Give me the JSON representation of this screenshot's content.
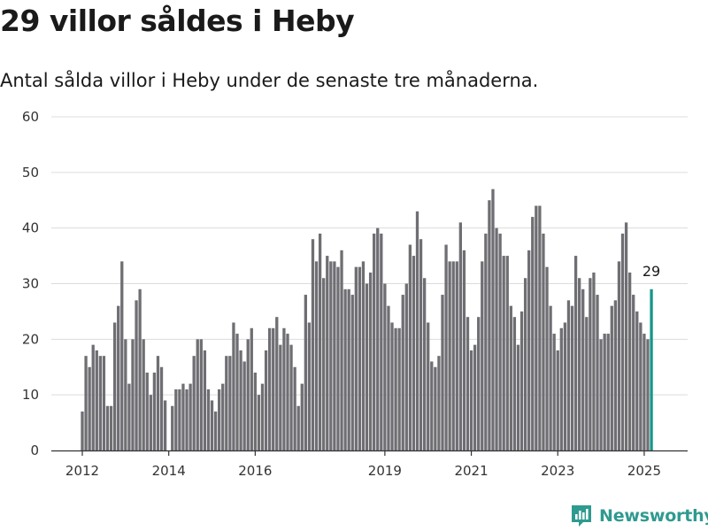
{
  "header": {
    "title": "29 villor såldes i Heby",
    "subtitle": "Antal sålda villor i Heby under de senaste tre månaderna."
  },
  "brand": {
    "name": "Newsworthy",
    "icon": "newsworthy-logo-icon",
    "color": "#2f9a8f"
  },
  "colors": {
    "bar": "#6f6e73",
    "highlight": "#17968a",
    "grid": "#dcdcdc",
    "axis": "#333333"
  },
  "chart_data": {
    "type": "bar",
    "title": "",
    "xlabel": "",
    "ylabel": "",
    "ylim": [
      0,
      60
    ],
    "y_ticks": [
      0,
      10,
      20,
      30,
      40,
      50,
      60
    ],
    "x_ticks": [
      {
        "label": "2012",
        "date": "2012-01"
      },
      {
        "label": "2014",
        "date": "2014-01"
      },
      {
        "label": "2016",
        "date": "2016-01"
      },
      {
        "label": "2019",
        "date": "2019-01"
      },
      {
        "label": "2021",
        "date": "2021-01"
      },
      {
        "label": "2023",
        "date": "2023-01"
      },
      {
        "label": "2025",
        "date": "2025-01"
      }
    ],
    "grid": true,
    "start": "2012-01",
    "end": "2025-03",
    "values": [
      7,
      17,
      15,
      19,
      18,
      17,
      17,
      8,
      8,
      23,
      26,
      34,
      20,
      12,
      20,
      27,
      29,
      20,
      14,
      10,
      14,
      17,
      15,
      9,
      0,
      8,
      11,
      11,
      12,
      11,
      12,
      17,
      20,
      20,
      18,
      11,
      9,
      7,
      11,
      12,
      17,
      17,
      23,
      21,
      18,
      16,
      20,
      22,
      14,
      10,
      12,
      18,
      22,
      22,
      24,
      19,
      22,
      21,
      19,
      15,
      8,
      12,
      28,
      23,
      38,
      34,
      39,
      31,
      35,
      34,
      34,
      33,
      36,
      29,
      29,
      28,
      33,
      33,
      34,
      30,
      32,
      39,
      40,
      39,
      30,
      26,
      23,
      22,
      22,
      28,
      30,
      37,
      35,
      43,
      38,
      31,
      23,
      16,
      15,
      17,
      28,
      37,
      34,
      34,
      34,
      41,
      36,
      24,
      18,
      19,
      24,
      34,
      39,
      45,
      47,
      40,
      39,
      35,
      35,
      26,
      24,
      19,
      25,
      31,
      36,
      42,
      44,
      44,
      39,
      33,
      26,
      21,
      18,
      22,
      23,
      27,
      26,
      35,
      31,
      29,
      24,
      31,
      32,
      28,
      20,
      21,
      21,
      26,
      27,
      34,
      39,
      41,
      32,
      28,
      25,
      23,
      21,
      20,
      29
    ],
    "highlight_index": 158,
    "annotation": {
      "label": "29",
      "value": 29
    }
  }
}
